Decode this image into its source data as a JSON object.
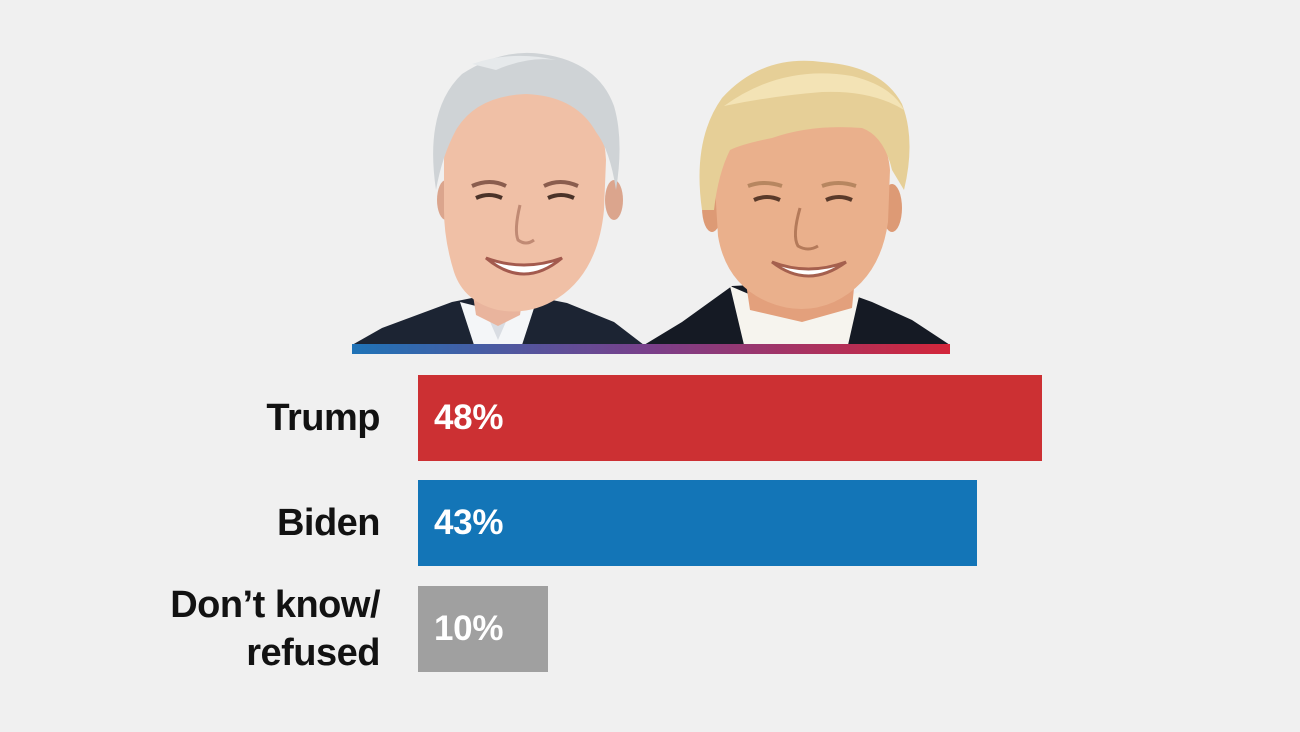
{
  "colors": {
    "background": "#f0f0f0",
    "trump_red": "#cc3033",
    "biden_blue": "#1375b7",
    "undecided_gray": "#a0a0a0",
    "label_text": "#121212",
    "value_text": "#ffffff"
  },
  "chart_data": {
    "type": "bar",
    "orientation": "horizontal",
    "title": "",
    "xlabel": "",
    "ylabel": "",
    "xlim": [
      0,
      100
    ],
    "grid": false,
    "categories": [
      "Trump",
      "Biden",
      "Don’t know/ refused"
    ],
    "category_lines": [
      [
        "Trump"
      ],
      [
        "Biden"
      ],
      [
        "Don’t know/",
        "refused"
      ]
    ],
    "values": [
      48,
      43,
      10
    ],
    "value_labels": [
      "48%",
      "43%",
      "10%"
    ],
    "colors": [
      "#cc3033",
      "#1375b7",
      "#a0a0a0"
    ]
  },
  "portraits": {
    "left": "biden-portrait-icon",
    "right": "trump-portrait-icon"
  }
}
